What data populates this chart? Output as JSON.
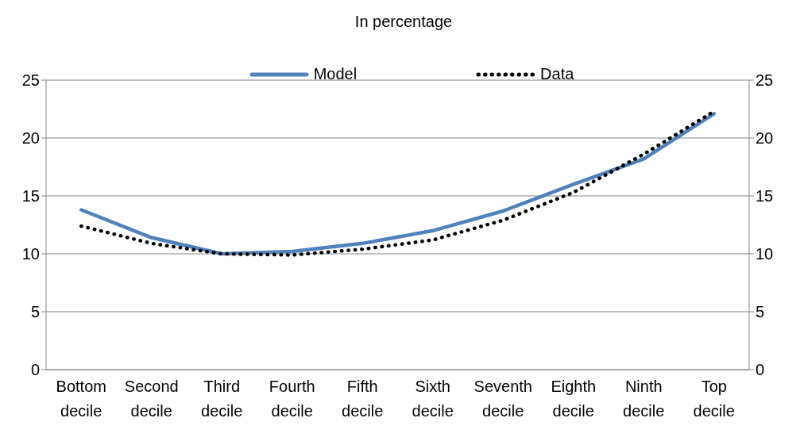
{
  "chart_data": {
    "type": "line",
    "title": "In percentage",
    "categories": [
      "Bottom decile",
      "Second decile",
      "Third decile",
      "Fourth decile",
      "Fifth decile",
      "Sixth decile",
      "Seventh decile",
      "Eighth decile",
      "Ninth decile",
      "Top decile"
    ],
    "series": [
      {
        "name": "Model",
        "color": "#4f81bd",
        "line_style": "solid",
        "values": [
          13.8,
          11.4,
          10.0,
          10.2,
          10.9,
          12.0,
          13.7,
          16.0,
          18.2,
          22.1
        ]
      },
      {
        "name": "Data",
        "color": "#000000",
        "line_style": "dotted",
        "values": [
          12.4,
          10.9,
          10.0,
          9.9,
          10.4,
          11.2,
          12.9,
          15.3,
          18.6,
          22.3
        ]
      }
    ],
    "ylim": [
      0,
      25
    ],
    "yticks": [
      0,
      5,
      10,
      15,
      20,
      25
    ],
    "y2lim": [
      0,
      25
    ],
    "y2ticks": [
      0,
      5,
      10,
      15,
      20,
      25
    ],
    "grid": "y",
    "legend": "top",
    "marker": "none"
  }
}
